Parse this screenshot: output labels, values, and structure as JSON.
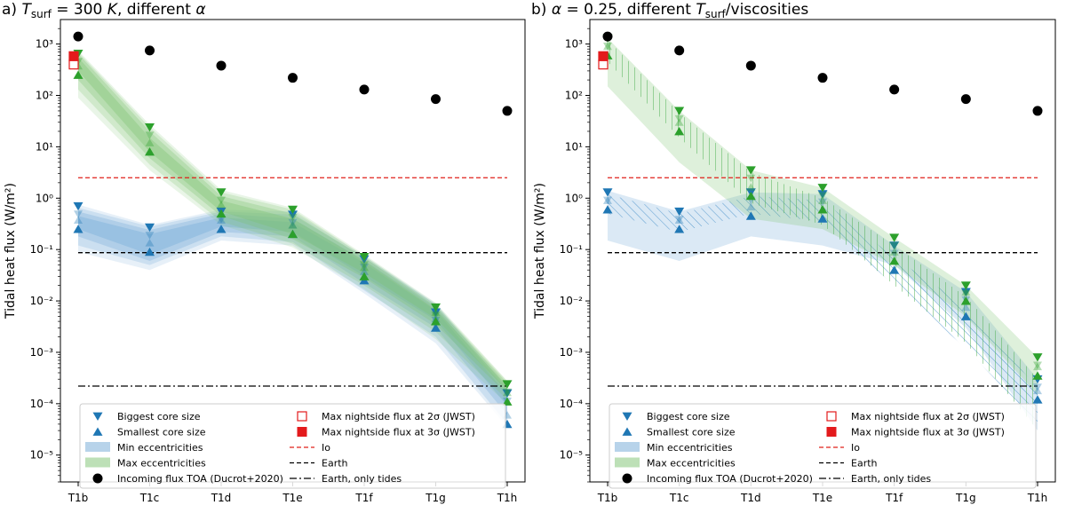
{
  "chart_data": [
    {
      "type": "scatter",
      "title": "a) T_surf = 300 K, different α",
      "title_parts": [
        "a) ",
        "T",
        "surf",
        " = 300 ",
        "K",
        ", different ",
        "α"
      ],
      "xlabel": "",
      "ylabel": "Tidal heat flux (W/m²)",
      "yscale": "log",
      "ylim": [
        3e-06,
        3000
      ],
      "categories": [
        "T1b",
        "T1c",
        "T1d",
        "T1e",
        "T1f",
        "T1g",
        "T1h"
      ],
      "y_tick_labels": [
        "10⁻⁵",
        "10⁻⁴",
        "10⁻³",
        "10⁻²",
        "10⁻¹",
        "10⁰",
        "10¹",
        "10²",
        "10³"
      ],
      "y_tick_values": [
        1e-05,
        0.0001,
        0.001,
        0.01,
        0.1,
        1,
        10,
        100,
        1000
      ],
      "bands": [
        {
          "name": "Min eccentricities",
          "color": "#6fa8d6",
          "layers": [
            {
              "low": [
                0.25,
                0.08,
                0.28,
                0.22,
                0.03,
                0.0042,
                9e-05
              ],
              "high": [
                0.45,
                0.2,
                0.42,
                0.34,
                0.055,
                0.0065,
                0.00015
              ]
            },
            {
              "low": [
                0.18,
                0.06,
                0.22,
                0.18,
                0.022,
                0.003,
                6e-05
              ],
              "high": [
                0.55,
                0.24,
                0.5,
                0.4,
                0.062,
                0.0075,
                0.00018
              ]
            },
            {
              "low": [
                0.12,
                0.05,
                0.18,
                0.14,
                0.016,
                0.002,
                4e-05
              ],
              "high": [
                0.65,
                0.28,
                0.55,
                0.48,
                0.07,
                0.0085,
                0.0002
              ]
            },
            {
              "low": [
                0.09,
                0.04,
                0.15,
                0.12,
                0.014,
                0.0015,
                3.5e-05
              ],
              "high": [
                0.75,
                0.3,
                0.6,
                0.55,
                0.075,
                0.009,
                0.00022
              ]
            }
          ]
        },
        {
          "name": "Max eccentricities",
          "color": "#7cc26f",
          "layers": [
            {
              "low": [
                300,
                8,
                0.55,
                0.2,
                0.035,
                0.0045,
                0.00018
              ],
              "high": [
                550,
                15,
                0.9,
                0.4,
                0.06,
                0.0068,
                0.00022
              ]
            },
            {
              "low": [
                200,
                6,
                0.45,
                0.16,
                0.028,
                0.0035,
                0.00015
              ],
              "high": [
                650,
                20,
                1.1,
                0.5,
                0.07,
                0.0078,
                0.00025
              ]
            },
            {
              "low": [
                130,
                4.5,
                0.35,
                0.13,
                0.02,
                0.0025,
                0.00012
              ],
              "high": [
                700,
                24,
                1.3,
                0.6,
                0.075,
                0.0085,
                0.00027
              ]
            },
            {
              "low": [
                90,
                3.5,
                0.3,
                0.11,
                0.017,
                0.0018,
                0.0001
              ],
              "high": [
                750,
                27,
                1.45,
                0.65,
                0.08,
                0.0092,
                0.00028
              ]
            }
          ]
        }
      ],
      "series": [
        {
          "name": "Biggest core size",
          "marker": "triangle-down",
          "values_blue": [
            0.7,
            0.27,
            0.55,
            0.48,
            0.065,
            0.006,
            0.00016
          ],
          "values_green": [
            650,
            24,
            1.3,
            0.6,
            0.072,
            0.0075,
            0.00024
          ]
        },
        {
          "name": "Smallest core size",
          "marker": "triangle-up",
          "values_blue": [
            0.25,
            0.09,
            0.25,
            0.2,
            0.025,
            0.003,
            4e-05
          ],
          "values_green": [
            250,
            8,
            0.5,
            0.2,
            0.03,
            0.004,
            0.00011
          ]
        },
        {
          "name": "Incoming flux TOA (Ducrot+2020)",
          "marker": "circle",
          "values": [
            1400,
            750,
            380,
            220,
            130,
            85,
            50
          ]
        }
      ],
      "jwst": [
        {
          "name": "Max nightside flux at 2σ (JWST)",
          "value": 400,
          "filled": false
        },
        {
          "name": "Max nightside flux at 3σ (JWST)",
          "value": 580,
          "filled": true
        }
      ],
      "reference_lines": [
        {
          "name": "Io",
          "value": 2.5,
          "style": "dashed",
          "color": "#e0201b"
        },
        {
          "name": "Earth",
          "value": 0.087,
          "style": "dashed",
          "color": "#000000"
        },
        {
          "name": "Earth, only tides",
          "value": 0.00022,
          "style": "dashdot",
          "color": "#000000"
        }
      ],
      "legend": {
        "position": "lower-center",
        "col1": [
          "Biggest core size",
          "Smallest core size",
          "Min eccentricities",
          "Max eccentricities",
          "Incoming flux TOA (Ducrot+2020)"
        ],
        "col2": [
          "Max nightside flux at 2σ (JWST)",
          "Max nightside flux at 3σ (JWST)",
          "Io",
          "Earth",
          "Earth, only tides"
        ]
      }
    },
    {
      "type": "scatter",
      "title": "b) α = 0.25, different T_surf/viscosities",
      "title_parts": [
        "b) ",
        "α",
        " = 0.25, different ",
        "T",
        "surf",
        "/viscosities"
      ],
      "xlabel": "",
      "ylabel": "Tidal heat flux (W/m²)",
      "yscale": "log",
      "ylim": [
        3e-06,
        3000
      ],
      "categories": [
        "T1b",
        "T1c",
        "T1d",
        "T1e",
        "T1f",
        "T1g",
        "T1h"
      ],
      "y_tick_labels": [
        "10⁻⁵",
        "10⁻⁴",
        "10⁻³",
        "10⁻²",
        "10⁻¹",
        "10⁰",
        "10¹",
        "10²",
        "10³"
      ],
      "y_tick_values": [
        1e-05,
        0.0001,
        0.001,
        0.01,
        0.1,
        1,
        10,
        100,
        1000
      ],
      "bands": [
        {
          "name": "Min eccentricities",
          "color": "#6fa8d6",
          "layers": [
            {
              "low": [
                0.15,
                0.06,
                0.18,
                0.12,
                0.05,
                0.003,
                3e-05
              ],
              "high": [
                1.4,
                0.55,
                1.3,
                1.2,
                0.12,
                0.015,
                0.0003
              ]
            }
          ],
          "hatch": {
            "low": [
              0.5,
              0.22,
              0.5,
              0.35,
              0.02,
              0.0012,
              4e-05
            ],
            "high": [
              1.2,
              0.5,
              1.1,
              0.9,
              0.07,
              0.008,
              0.0002
            ]
          }
        },
        {
          "name": "Max eccentricities",
          "color": "#7cc26f",
          "layers": [
            {
              "low": [
                150,
                5,
                0.4,
                0.25,
                0.05,
                0.005,
                0.00015
              ],
              "high": [
                1300,
                50,
                3.5,
                1.6,
                0.17,
                0.02,
                0.0008
              ]
            }
          ],
          "hatch": {
            "low": [
              450,
              15,
              0.8,
              0.3,
              0.02,
              0.0015,
              3e-05
            ],
            "high": [
              1200,
              45,
              3.2,
              1.0,
              0.12,
              0.012,
              0.0003
            ]
          }
        }
      ],
      "series": [
        {
          "name": "Biggest core size",
          "marker": "triangle-down",
          "values_blue": [
            1.3,
            0.55,
            1.3,
            1.2,
            0.12,
            0.015,
            0.0003
          ],
          "values_green": [
            1300,
            50,
            3.5,
            1.6,
            0.17,
            0.02,
            0.0008
          ]
        },
        {
          "name": "Smallest core size",
          "marker": "triangle-up",
          "values_blue": [
            0.6,
            0.25,
            0.45,
            0.4,
            0.04,
            0.005,
            0.00012
          ],
          "values_green": [
            600,
            20,
            1.1,
            0.6,
            0.06,
            0.01,
            0.00035
          ]
        },
        {
          "name": "Incoming flux TOA (Ducrot+2020)",
          "marker": "circle",
          "values": [
            1400,
            750,
            380,
            220,
            130,
            85,
            50
          ]
        }
      ],
      "jwst": [
        {
          "name": "Max nightside flux at 2σ (JWST)",
          "value": 400,
          "filled": false
        },
        {
          "name": "Max nightside flux at 3σ (JWST)",
          "value": 580,
          "filled": true
        }
      ],
      "reference_lines": [
        {
          "name": "Io",
          "value": 2.5,
          "style": "dashed",
          "color": "#e0201b"
        },
        {
          "name": "Earth",
          "value": 0.087,
          "style": "dashed",
          "color": "#000000"
        },
        {
          "name": "Earth, only tides",
          "value": 0.00022,
          "style": "dashdot",
          "color": "#000000"
        }
      ],
      "legend": {
        "position": "lower-center",
        "col1": [
          "Biggest core size",
          "Smallest core size",
          "Min eccentricities",
          "Max eccentricities",
          "Incoming flux TOA (Ducrot+2020)"
        ],
        "col2": [
          "Max nightside flux at 2σ (JWST)",
          "Max nightside flux at 3σ (JWST)",
          "Io",
          "Earth",
          "Earth, only tides"
        ]
      }
    }
  ],
  "colors": {
    "blue_marker": "#1f77b4",
    "green_marker": "#2ca02c",
    "io_line": "#e0201b",
    "jwst": "#e31a1c"
  }
}
